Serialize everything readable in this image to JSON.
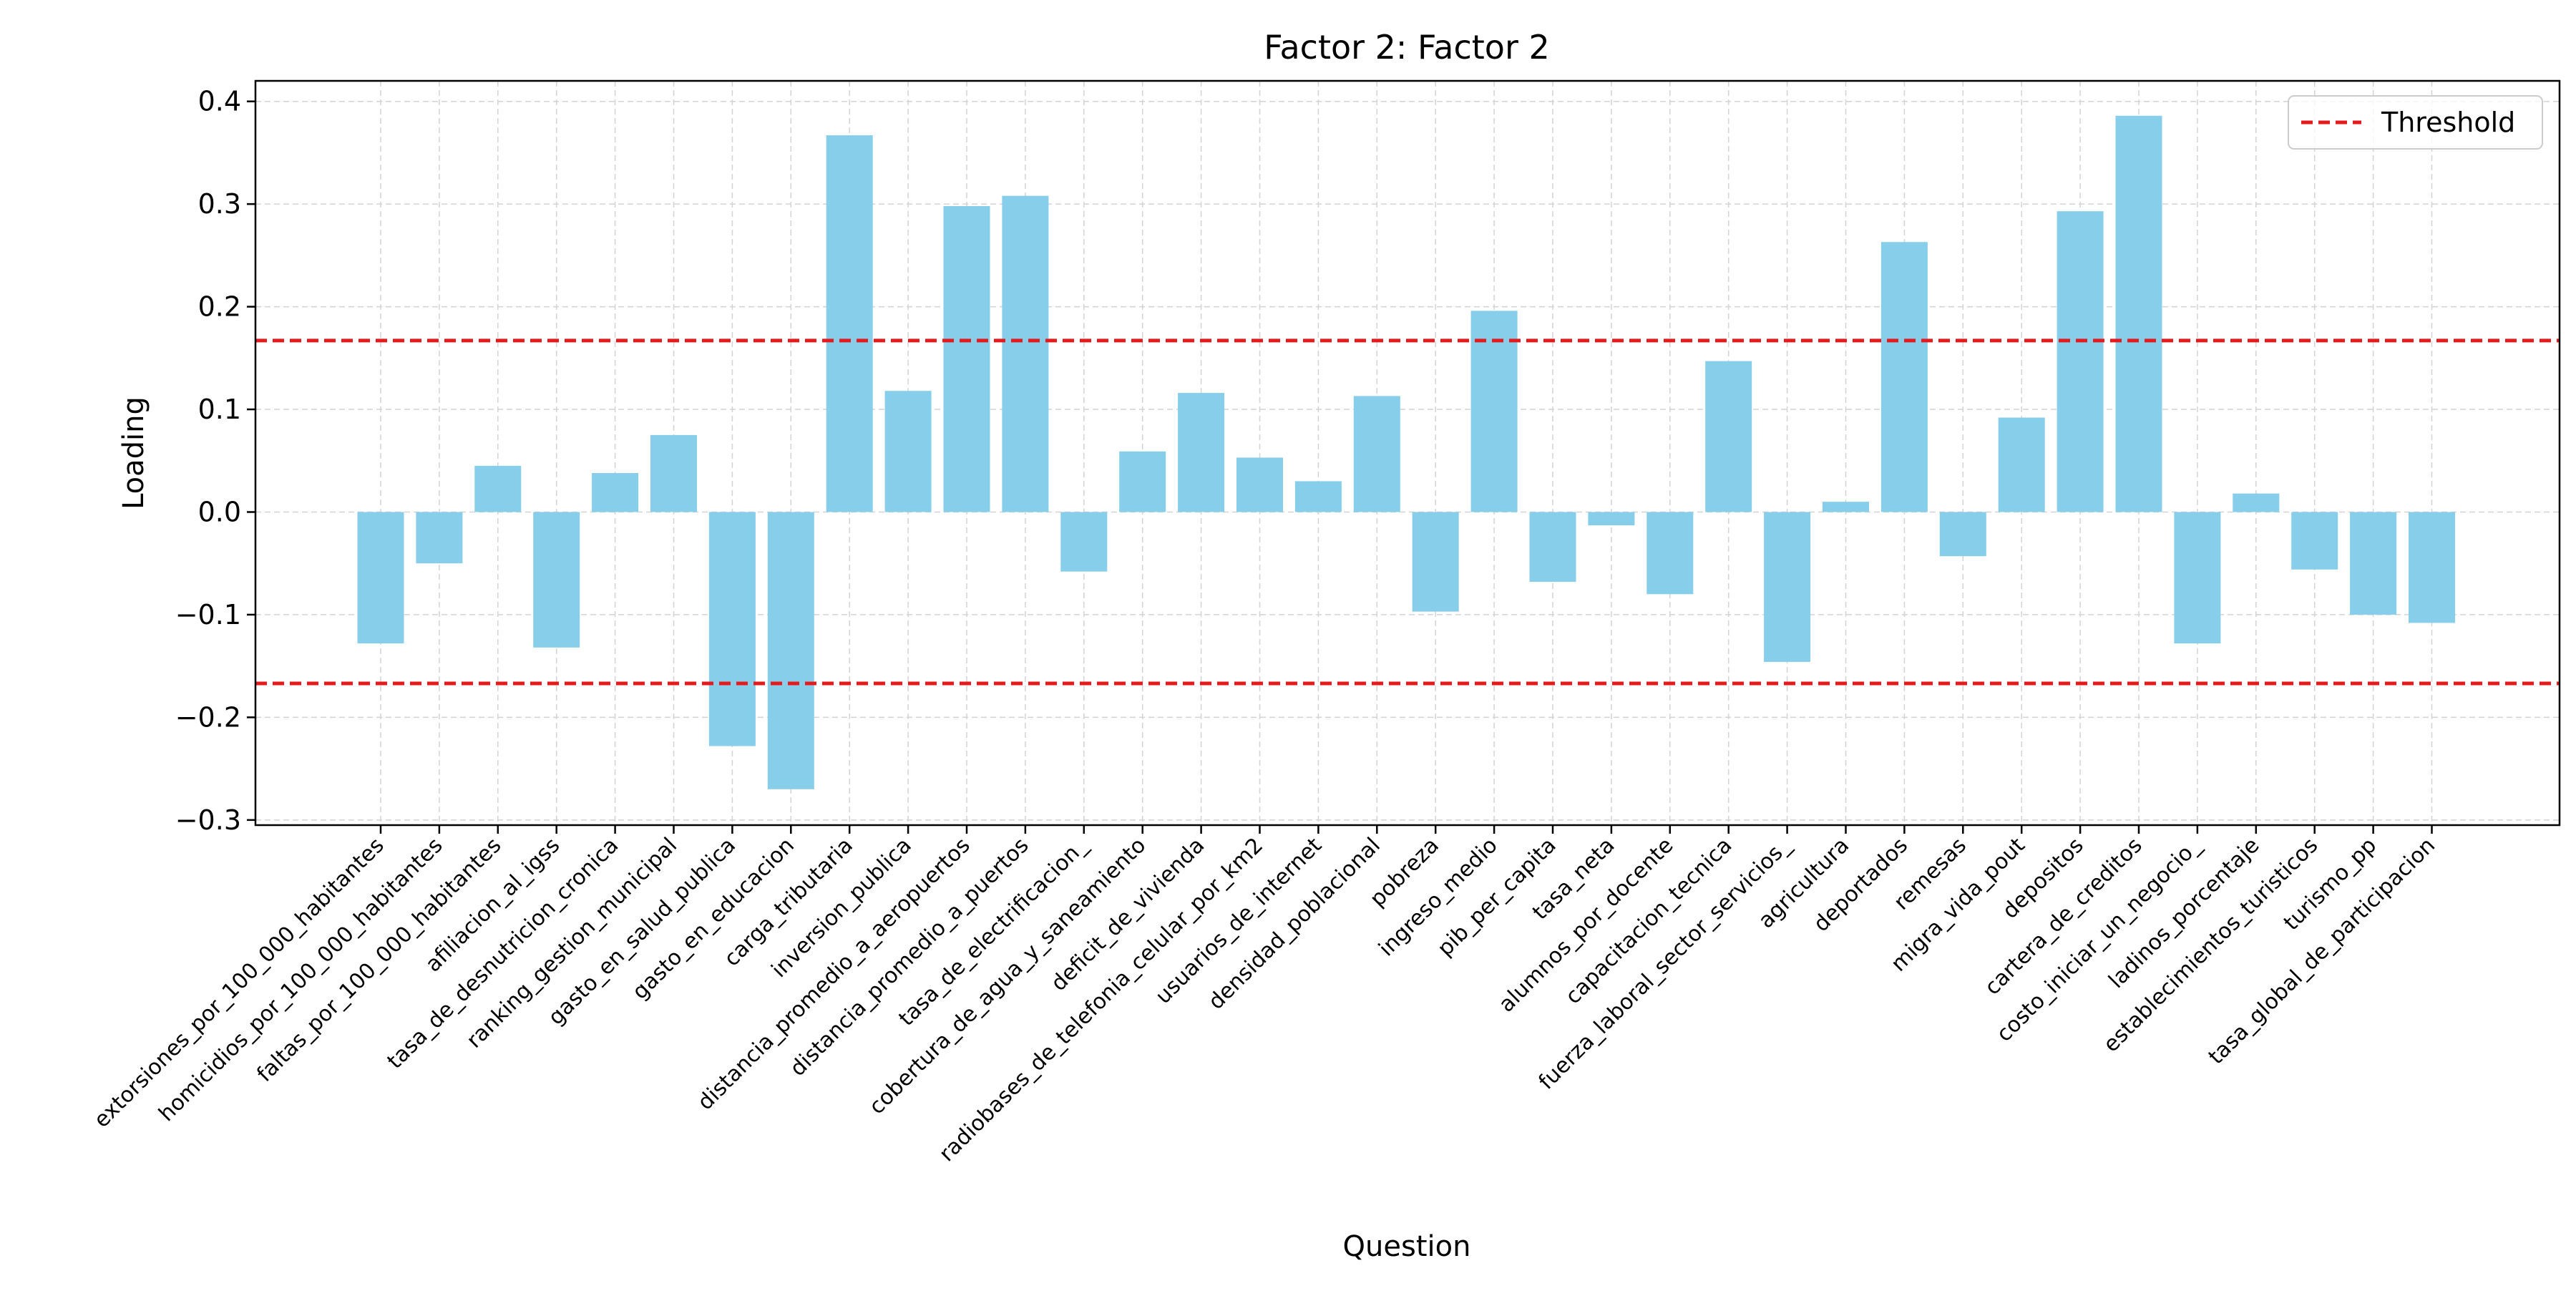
{
  "chart_data": {
    "type": "bar",
    "title": "Factor 2: Factor 2",
    "xlabel": "Question",
    "ylabel": "Loading",
    "ylim": [
      -0.305,
      0.42
    ],
    "yticks": [
      -0.3,
      -0.2,
      -0.1,
      0.0,
      0.1,
      0.2,
      0.3,
      0.4
    ],
    "ytick_labels": [
      "−0.3",
      "−0.2",
      "−0.1",
      "0.0",
      "0.1",
      "0.2",
      "0.3",
      "0.4"
    ],
    "grid": true,
    "legend": {
      "position": "top-right",
      "entries": [
        "Threshold"
      ]
    },
    "threshold": {
      "label": "Threshold",
      "values": [
        0.167,
        -0.167
      ],
      "color": "#e41a1c"
    },
    "bar_color": "#87ceeb",
    "categories": [
      "extorsiones_por_100_000_habitantes",
      "homicidios_por_100_000_habitantes",
      "faltas_por_100_000_habitantes",
      "afiliacion_al_igss",
      "tasa_de_desnutricion_cronica",
      "ranking_gestion_municipal",
      "gasto_en_salud_publica",
      "gasto_en_educacion",
      "carga_tributaria",
      "inversion_publica",
      "distancia_promedio_a_aeropuertos",
      "distancia_promedio_a_puertos",
      "tasa_de_electrificacion_",
      "cobertura_de_agua_y_saneamiento",
      "deficit_de_vivienda",
      "radiobases_de_telefonia_celular_por_km2",
      "usuarios_de_internet",
      "densidad_poblacional",
      "pobreza",
      "ingreso_medio",
      "pib_per_capita",
      "tasa_neta",
      "alumnos_por_docente",
      "capacitacion_tecnica",
      "fuerza_laboral_sector_servicios_",
      "agricultura",
      "deportados",
      "remesas",
      "migra_vida_pout",
      "depositos",
      "cartera_de_creditos",
      "costo_iniciar_un_negocio_",
      "ladinos_porcentaje",
      "establecimientos_turisticos",
      "turismo_pp",
      "tasa_global_de_participacion"
    ],
    "values": [
      -0.128,
      -0.05,
      0.045,
      -0.132,
      0.038,
      0.075,
      -0.228,
      -0.27,
      0.367,
      0.118,
      0.298,
      0.308,
      -0.058,
      0.059,
      0.116,
      0.053,
      0.03,
      0.113,
      -0.097,
      0.196,
      -0.068,
      -0.013,
      -0.08,
      0.147,
      -0.146,
      0.01,
      0.263,
      -0.043,
      0.092,
      0.293,
      0.386,
      -0.128,
      0.018,
      -0.056,
      -0.1,
      -0.108
    ]
  }
}
